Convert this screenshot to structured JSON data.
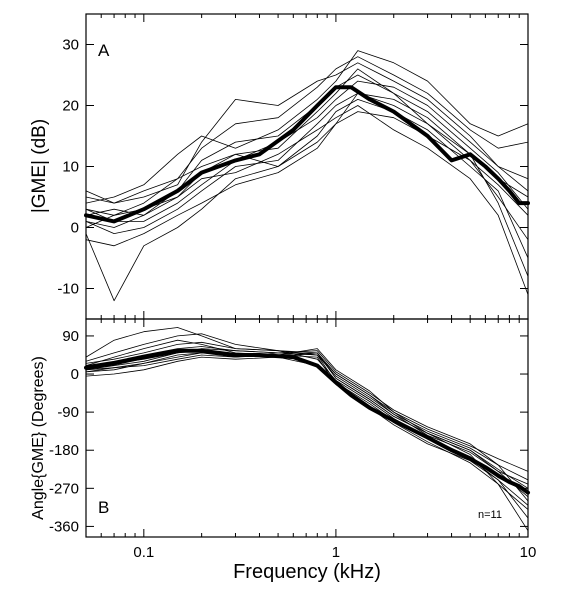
{
  "chart_data": [
    {
      "panel": "A",
      "type": "line",
      "xlabel": "",
      "ylabel": "|GME| (dB)",
      "x_scale": "log",
      "xlim": [
        0.05,
        10
      ],
      "ylim": [
        -15,
        35
      ],
      "yticks": [
        -10,
        0,
        10,
        20,
        30
      ],
      "ytick_labels": [
        "-10",
        "0",
        "10",
        "20",
        "30"
      ],
      "mean_series": {
        "x": [
          0.05,
          0.07,
          0.1,
          0.15,
          0.2,
          0.3,
          0.4,
          0.6,
          0.8,
          1.0,
          1.2,
          1.5,
          2.0,
          3.0,
          4.0,
          5.0,
          6.0,
          7.0,
          8.0,
          9.0,
          10.0
        ],
        "values": [
          2,
          1,
          3,
          6,
          9,
          11,
          12,
          16,
          20,
          23,
          23,
          21,
          19,
          15,
          11,
          12,
          10,
          8,
          6,
          4,
          4
        ]
      },
      "series": [
        {
          "x": [
            0.05,
            0.07,
            0.1,
            0.15,
            0.2,
            0.3,
            0.5,
            0.8,
            1.0,
            1.3,
            2.0,
            3.0,
            5.0,
            7.0,
            10.0
          ],
          "values": [
            5,
            4,
            6,
            8,
            13,
            17,
            18,
            23,
            26,
            28,
            25,
            22,
            16,
            13,
            14
          ]
        },
        {
          "x": [
            0.05,
            0.07,
            0.1,
            0.15,
            0.2,
            0.3,
            0.5,
            0.8,
            1.0,
            1.3,
            2.0,
            3.0,
            5.0,
            7.0,
            10.0
          ],
          "values": [
            4,
            5,
            7,
            12,
            15,
            13,
            16,
            21,
            24,
            29,
            27,
            24,
            17,
            15,
            17
          ]
        },
        {
          "x": [
            0.05,
            0.07,
            0.1,
            0.15,
            0.2,
            0.3,
            0.5,
            0.8,
            1.0,
            1.3,
            2.0,
            3.0,
            5.0,
            7.0,
            10.0
          ],
          "values": [
            6,
            4,
            5,
            7,
            14,
            21,
            20,
            24,
            25,
            27,
            24,
            21,
            15,
            10,
            8
          ]
        },
        {
          "x": [
            0.05,
            0.07,
            0.1,
            0.15,
            0.2,
            0.3,
            0.5,
            0.8,
            1.0,
            1.3,
            2.0,
            3.0,
            5.0,
            7.0,
            10.0
          ],
          "values": [
            3,
            2,
            4,
            8,
            10,
            12,
            13,
            19,
            22,
            26,
            22,
            19,
            13,
            9,
            3
          ]
        },
        {
          "x": [
            0.05,
            0.07,
            0.1,
            0.15,
            0.2,
            0.3,
            0.5,
            0.8,
            1.0,
            1.3,
            2.0,
            3.0,
            5.0,
            7.0,
            10.0
          ],
          "values": [
            -1,
            -12,
            -3,
            0,
            3,
            8,
            10,
            15,
            19,
            21,
            19,
            16,
            10,
            6,
            -5
          ]
        },
        {
          "x": [
            0.05,
            0.07,
            0.1,
            0.15,
            0.2,
            0.3,
            0.5,
            0.8,
            1.0,
            1.3,
            2.0,
            3.0,
            5.0,
            7.0,
            10.0
          ],
          "values": [
            1,
            -1,
            0,
            3,
            6,
            10,
            11,
            17,
            20,
            22,
            20,
            17,
            12,
            4,
            -8
          ]
        },
        {
          "x": [
            0.05,
            0.07,
            0.1,
            0.15,
            0.2,
            0.3,
            0.5,
            0.8,
            1.0,
            1.3,
            2.0,
            3.0,
            5.0,
            7.0,
            10.0
          ],
          "values": [
            2,
            3,
            2,
            5,
            9,
            12,
            10,
            14,
            17,
            19,
            18,
            15,
            11,
            7,
            2
          ]
        },
        {
          "x": [
            0.05,
            0.07,
            0.1,
            0.15,
            0.2,
            0.3,
            0.5,
            0.8,
            1.0,
            1.3,
            2.0,
            3.0,
            5.0,
            7.0,
            10.0
          ],
          "values": [
            0,
            2,
            3,
            5,
            8,
            9,
            12,
            16,
            18,
            20,
            16,
            13,
            8,
            2,
            -11
          ]
        },
        {
          "x": [
            0.05,
            0.07,
            0.1,
            0.15,
            0.2,
            0.3,
            0.5,
            0.8,
            1.0,
            1.3,
            2.0,
            3.0,
            5.0,
            7.0,
            10.0
          ],
          "values": [
            -2,
            -3,
            -1,
            2,
            4,
            7,
            9,
            13,
            17,
            22,
            21,
            18,
            12,
            8,
            5
          ]
        },
        {
          "x": [
            0.05,
            0.07,
            0.1,
            0.15,
            0.2,
            0.3,
            0.5,
            0.8,
            1.0,
            1.3,
            2.0,
            3.0,
            5.0,
            7.0,
            10.0
          ],
          "values": [
            3,
            1,
            1,
            4,
            7,
            11,
            14,
            18,
            21,
            24,
            23,
            20,
            14,
            10,
            6
          ]
        },
        {
          "x": [
            0.05,
            0.07,
            0.1,
            0.15,
            0.2,
            0.3,
            0.5,
            0.8,
            1.0,
            1.3,
            2.0,
            3.0,
            5.0,
            7.0,
            10.0
          ],
          "values": [
            1,
            0,
            2,
            6,
            11,
            14,
            15,
            20,
            23,
            25,
            22,
            17,
            11,
            5,
            -2
          ]
        }
      ]
    },
    {
      "panel": "B",
      "type": "line",
      "xlabel": "Frequency (kHz)",
      "ylabel": "Angle{GME} (Degrees)",
      "x_scale": "log",
      "xlim": [
        0.05,
        10
      ],
      "ylim": [
        -385,
        130
      ],
      "xticks": [
        0.1,
        1,
        10
      ],
      "xtick_labels": [
        "0.1",
        "1",
        "10"
      ],
      "yticks": [
        90,
        0,
        -90,
        -180,
        -270,
        -360
      ],
      "ytick_labels": [
        "90",
        "0",
        "-90",
        "-180",
        "-270",
        "-360"
      ],
      "annotation": "n=11",
      "mean_series": {
        "x": [
          0.05,
          0.07,
          0.1,
          0.15,
          0.2,
          0.3,
          0.4,
          0.6,
          0.8,
          1.0,
          1.2,
          1.5,
          2.0,
          3.0,
          4.0,
          5.0,
          6.0,
          7.0,
          8.0,
          9.0,
          10.0
        ],
        "values": [
          15,
          25,
          40,
          55,
          55,
          45,
          45,
          40,
          20,
          -20,
          -50,
          -80,
          -110,
          -150,
          -180,
          -200,
          -220,
          -240,
          -255,
          -265,
          -280
        ]
      },
      "series": [
        {
          "x": [
            0.05,
            0.07,
            0.1,
            0.15,
            0.2,
            0.3,
            0.5,
            0.8,
            1.0,
            1.5,
            2.0,
            3.0,
            5.0,
            7.0,
            10.0
          ],
          "values": [
            40,
            80,
            100,
            110,
            90,
            60,
            55,
            50,
            -10,
            -60,
            -100,
            -140,
            -180,
            -230,
            -260
          ]
        },
        {
          "x": [
            0.05,
            0.07,
            0.1,
            0.15,
            0.2,
            0.3,
            0.5,
            0.8,
            1.0,
            1.5,
            2.0,
            3.0,
            5.0,
            7.0,
            10.0
          ],
          "values": [
            30,
            50,
            70,
            90,
            95,
            70,
            55,
            45,
            -5,
            -55,
            -95,
            -135,
            -175,
            -215,
            -300
          ]
        },
        {
          "x": [
            0.05,
            0.07,
            0.1,
            0.15,
            0.2,
            0.3,
            0.5,
            0.8,
            1.0,
            1.5,
            2.0,
            3.0,
            5.0,
            7.0,
            10.0
          ],
          "values": [
            10,
            20,
            30,
            50,
            60,
            55,
            50,
            45,
            -20,
            -70,
            -110,
            -150,
            -200,
            -250,
            -340
          ]
        },
        {
          "x": [
            0.05,
            0.07,
            0.1,
            0.15,
            0.2,
            0.3,
            0.5,
            0.8,
            1.0,
            1.5,
            2.0,
            3.0,
            5.0,
            7.0,
            10.0
          ],
          "values": [
            5,
            15,
            25,
            45,
            50,
            40,
            45,
            60,
            10,
            -40,
            -90,
            -130,
            -170,
            -200,
            -230
          ]
        },
        {
          "x": [
            0.05,
            0.07,
            0.1,
            0.15,
            0.2,
            0.3,
            0.5,
            0.8,
            1.0,
            1.5,
            2.0,
            3.0,
            5.0,
            7.0,
            10.0
          ],
          "values": [
            -5,
            0,
            10,
            30,
            40,
            35,
            40,
            50,
            -10,
            -60,
            -100,
            -140,
            -190,
            -260,
            -370
          ]
        },
        {
          "x": [
            0.05,
            0.07,
            0.1,
            0.15,
            0.2,
            0.3,
            0.5,
            0.8,
            1.0,
            1.5,
            2.0,
            3.0,
            5.0,
            7.0,
            10.0
          ],
          "values": [
            20,
            30,
            45,
            60,
            65,
            55,
            50,
            45,
            0,
            -50,
            -95,
            -145,
            -185,
            -230,
            -290
          ]
        },
        {
          "x": [
            0.05,
            0.07,
            0.1,
            0.15,
            0.2,
            0.3,
            0.5,
            0.8,
            1.0,
            1.5,
            2.0,
            3.0,
            5.0,
            7.0,
            10.0
          ],
          "values": [
            15,
            25,
            35,
            50,
            55,
            45,
            40,
            20,
            -20,
            -75,
            -115,
            -160,
            -210,
            -260,
            -320
          ]
        },
        {
          "x": [
            0.05,
            0.07,
            0.1,
            0.15,
            0.2,
            0.3,
            0.5,
            0.8,
            1.0,
            1.5,
            2.0,
            3.0,
            5.0,
            7.0,
            10.0
          ],
          "values": [
            25,
            35,
            50,
            70,
            75,
            60,
            55,
            35,
            -15,
            -65,
            -105,
            -150,
            -195,
            -245,
            -280
          ]
        },
        {
          "x": [
            0.05,
            0.07,
            0.1,
            0.15,
            0.2,
            0.3,
            0.5,
            0.8,
            1.0,
            1.5,
            2.0,
            3.0,
            5.0,
            7.0,
            10.0
          ],
          "values": [
            10,
            15,
            20,
            35,
            45,
            40,
            50,
            55,
            5,
            -45,
            -85,
            -125,
            -165,
            -215,
            -250
          ]
        },
        {
          "x": [
            0.05,
            0.07,
            0.1,
            0.15,
            0.2,
            0.3,
            0.5,
            0.8,
            1.0,
            1.5,
            2.0,
            3.0,
            5.0,
            7.0,
            10.0
          ],
          "values": [
            20,
            40,
            60,
            80,
            70,
            50,
            45,
            40,
            -25,
            -80,
            -120,
            -165,
            -205,
            -250,
            -310
          ]
        },
        {
          "x": [
            0.05,
            0.07,
            0.1,
            0.15,
            0.2,
            0.3,
            0.5,
            0.8,
            1.0,
            1.5,
            2.0,
            3.0,
            5.0,
            7.0,
            10.0
          ],
          "values": [
            5,
            10,
            25,
            40,
            50,
            45,
            45,
            50,
            0,
            -50,
            -90,
            -140,
            -180,
            -225,
            -270
          ]
        }
      ]
    }
  ]
}
